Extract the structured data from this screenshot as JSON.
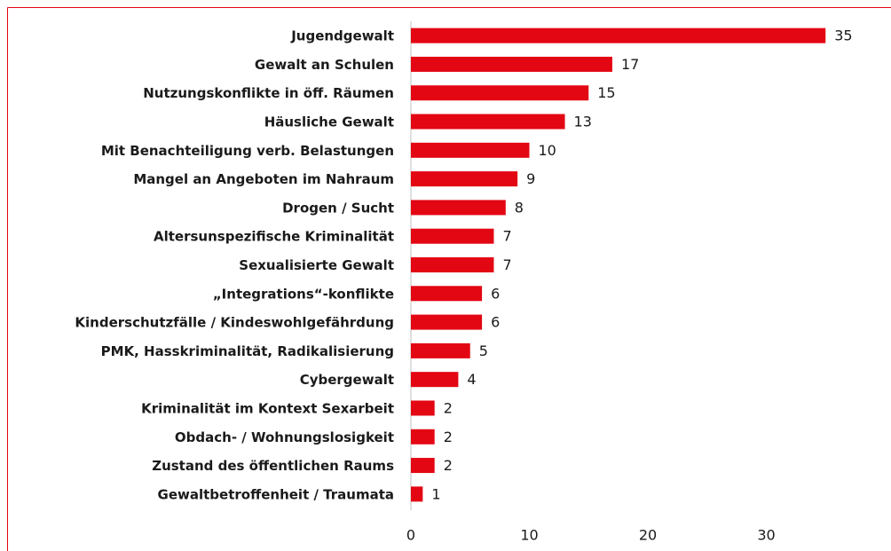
{
  "chart_data": {
    "type": "bar",
    "orientation": "horizontal",
    "categories": [
      "Jugendgewalt",
      "Gewalt an Schulen",
      "Nutzungskonflikte in öff. Räumen",
      "Häusliche Gewalt",
      "Mit Benachteiligung verb. Belastungen",
      "Mangel an Angeboten im Nahraum",
      "Drogen / Sucht",
      "Altersunspezifische Kriminalität",
      "Sexualisierte Gewalt",
      "„Integrations“-konflikte",
      "Kinderschutzfälle / Kindeswohlgefährdung",
      "PMK, Hasskriminalität, Radikalisierung",
      "Cybergewalt",
      "Kriminalität im Kontext Sexarbeit",
      "Obdach- / Wohnungslosigkeit",
      "Zustand des öffentlichen Raums",
      "Gewaltbetroffenheit / Traumata"
    ],
    "values": [
      35,
      17,
      15,
      13,
      10,
      9,
      8,
      7,
      7,
      6,
      6,
      5,
      4,
      2,
      2,
      2,
      1
    ],
    "color": "#e30613",
    "xlim": [
      0,
      40
    ],
    "xticks": [
      0,
      10,
      20,
      30
    ],
    "grid": false
  }
}
